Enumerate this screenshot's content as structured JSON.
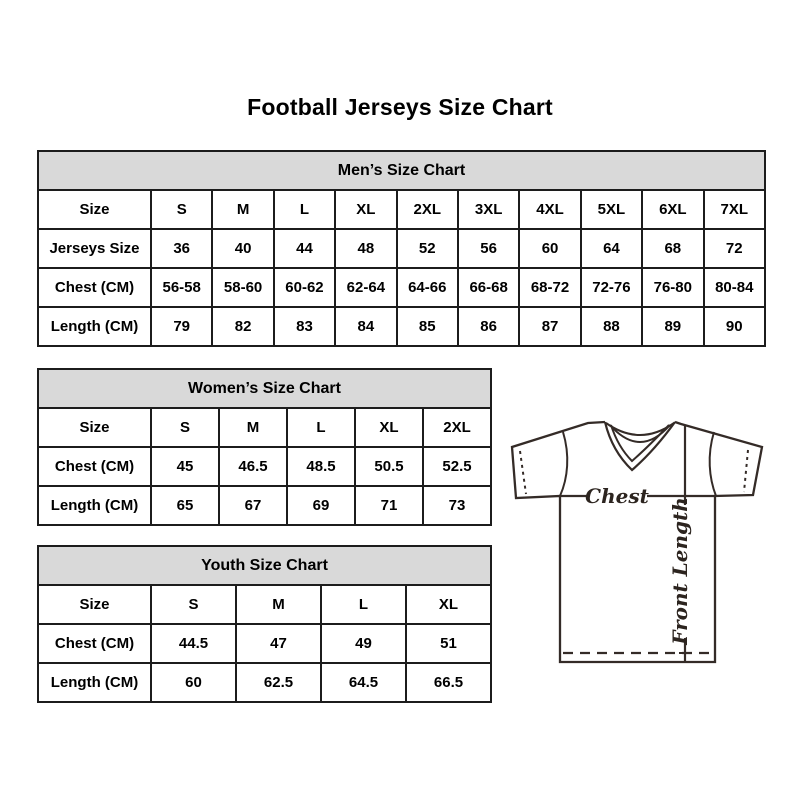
{
  "page": {
    "title": "Football Jerseys Size Chart"
  },
  "colors": {
    "background": "#ffffff",
    "table_border": "#1c1c1c",
    "table_title_bg": "#d9d9d9",
    "text": "#000000",
    "jersey_line": "#342b27"
  },
  "tables": {
    "men": {
      "title": "Men’s Size Chart",
      "rows": [
        {
          "label": "Size",
          "cells": [
            "S",
            "M",
            "L",
            "XL",
            "2XL",
            "3XL",
            "4XL",
            "5XL",
            "6XL",
            "7XL"
          ]
        },
        {
          "label": "Jerseys Size",
          "cells": [
            "36",
            "40",
            "44",
            "48",
            "52",
            "56",
            "60",
            "64",
            "68",
            "72"
          ]
        },
        {
          "label": "Chest (CM)",
          "cells": [
            "56-58",
            "58-60",
            "60-62",
            "62-64",
            "64-66",
            "66-68",
            "68-72",
            "72-76",
            "76-80",
            "80-84"
          ]
        },
        {
          "label": "Length (CM)",
          "cells": [
            "79",
            "82",
            "83",
            "84",
            "85",
            "86",
            "87",
            "88",
            "89",
            "90"
          ]
        }
      ]
    },
    "women": {
      "title": "Women’s Size Chart",
      "rows": [
        {
          "label": "Size",
          "cells": [
            "S",
            "M",
            "L",
            "XL",
            "2XL"
          ]
        },
        {
          "label": "Chest (CM)",
          "cells": [
            "45",
            "46.5",
            "48.5",
            "50.5",
            "52.5"
          ]
        },
        {
          "label": "Length (CM)",
          "cells": [
            "65",
            "67",
            "69",
            "71",
            "73"
          ]
        }
      ]
    },
    "youth": {
      "title": "Youth Size Chart",
      "rows": [
        {
          "label": "Size",
          "cells": [
            "S",
            "M",
            "L",
            "XL"
          ]
        },
        {
          "label": "Chest (CM)",
          "cells": [
            "44.5",
            "47",
            "49",
            "51"
          ]
        },
        {
          "label": "Length (CM)",
          "cells": [
            "60",
            "62.5",
            "64.5",
            "66.5"
          ]
        }
      ]
    }
  },
  "diagram": {
    "chest_label": "Chest",
    "front_length_label": "Front Length"
  }
}
